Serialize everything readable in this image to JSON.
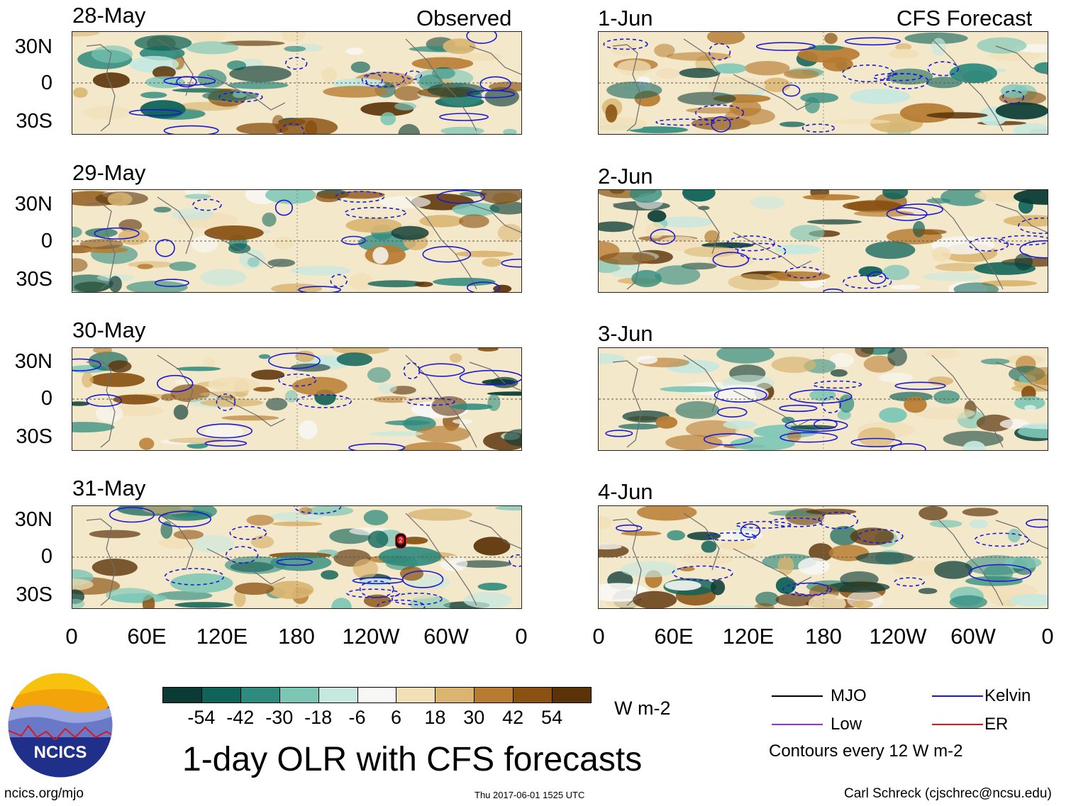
{
  "headers": {
    "observed": "Observed",
    "forecast": "CFS Forecast"
  },
  "observed_dates": [
    "28-May",
    "29-May",
    "30-May",
    "31-May"
  ],
  "forecast_dates": [
    "1-Jun",
    "2-Jun",
    "3-Jun",
    "4-Jun"
  ],
  "lat_labels": [
    "30N",
    "0",
    "30S"
  ],
  "lon_labels": [
    "0",
    "60E",
    "120E",
    "180",
    "120W",
    "60W",
    "0"
  ],
  "storm_marker": "2",
  "colorbar": {
    "colors": [
      "#0b3b34",
      "#0f6358",
      "#2f8b7d",
      "#7cc6b6",
      "#c6e8df",
      "#f7f7f5",
      "#f1dfb7",
      "#d9b571",
      "#b77c32",
      "#8a5212",
      "#5b3308"
    ],
    "labels": [
      "-54",
      "-42",
      "-30",
      "-18",
      "-6",
      "6",
      "18",
      "30",
      "42",
      "54"
    ],
    "units": "W m-2"
  },
  "legend": {
    "items": [
      {
        "name": "MJO",
        "color": "#000000"
      },
      {
        "name": "Kelvin",
        "color": "#1a1ad6"
      },
      {
        "name": "Low",
        "color": "#9b30d9"
      },
      {
        "name": "ER",
        "color": "#d61a1a"
      }
    ],
    "contour_note": "Contours every 12 W m-2"
  },
  "title": "1-day OLR with CFS forecasts",
  "logo_text": "NCICS",
  "footer": {
    "url": "ncics.org/mjo",
    "timestamp": "Thu 2017-06-01 1525 UTC",
    "credit": "Carl Schreck (cjschrec@ncsu.edu)"
  }
}
